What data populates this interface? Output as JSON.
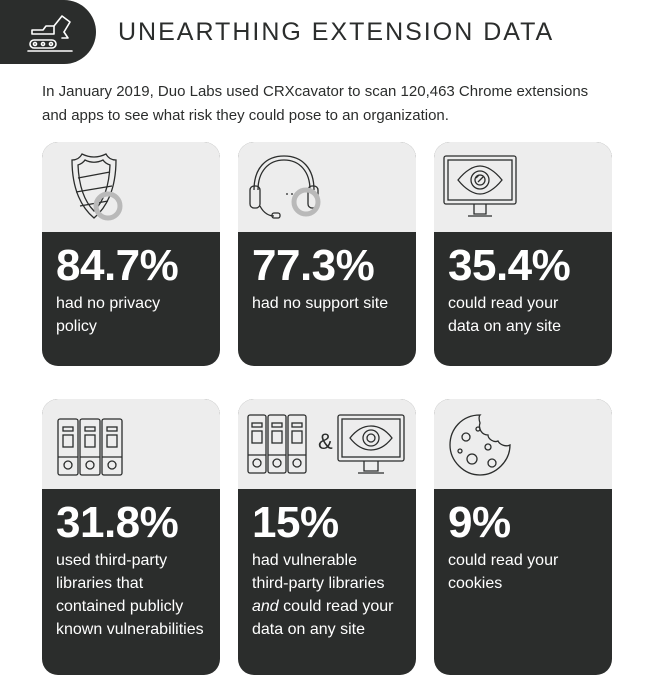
{
  "header": {
    "title": "UNEARTHING EXTENSION DATA",
    "icon": "excavator-icon"
  },
  "intro": "In January 2019, Duo Labs used CRXcavator to scan 120,463 Chrome extensions and apps to see what risk they could pose to an organization.",
  "colors": {
    "dark": "#2b2d2c",
    "light": "#ededed",
    "accent_ring": "#b9b9b9"
  },
  "cards": [
    {
      "icon": "shield-icon",
      "value": "84.7%",
      "line1": "had no privacy",
      "line2": "policy"
    },
    {
      "icon": "headset-icon",
      "value": "77.3%",
      "line1": "had no support site"
    },
    {
      "icon": "monitor-eye-icon",
      "value": "35.4%",
      "line1": "could read your",
      "line2": "data on any site"
    },
    {
      "icon": "binders-icon",
      "value": "31.8%",
      "line1": "used third-party",
      "line2": "libraries that",
      "line3": "contained publicly",
      "line4": "known vulnerabilities"
    },
    {
      "icon": "binders-and-monitor-icon",
      "ampersand": "&",
      "value": "15%",
      "line1": "had vulnerable",
      "line2": "third-party libraries",
      "line3_em": "and",
      "line3_rest": " could read your",
      "line4": "data on any site"
    },
    {
      "icon": "cookie-icon",
      "value": "9%",
      "line1": "could read your",
      "line2": "cookies"
    }
  ]
}
